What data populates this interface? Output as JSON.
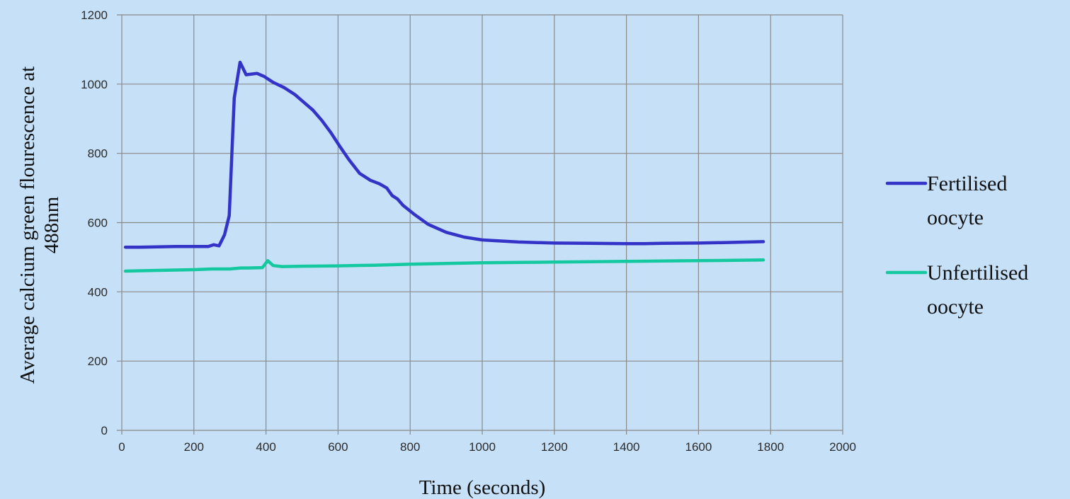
{
  "chart_data": {
    "type": "line",
    "title": "",
    "xlabel": "Time (seconds)",
    "ylabel_line1": "Average calcium green flourescence at",
    "ylabel_line2": "488nm",
    "xlim": [
      0,
      2000
    ],
    "ylim": [
      0,
      1200
    ],
    "xticks": [
      0,
      200,
      400,
      600,
      800,
      1000,
      1200,
      1400,
      1600,
      1800,
      2000
    ],
    "yticks": [
      0,
      200,
      400,
      600,
      800,
      1000,
      1200
    ],
    "grid": true,
    "legend_position": "right",
    "series": [
      {
        "name_line1": "Fertilised",
        "name_line2": "oocyte",
        "color": "#3333c8",
        "points": [
          [
            10,
            529
          ],
          [
            50,
            529
          ],
          [
            100,
            530
          ],
          [
            150,
            531
          ],
          [
            200,
            531
          ],
          [
            240,
            531
          ],
          [
            255,
            536
          ],
          [
            270,
            533
          ],
          [
            285,
            565
          ],
          [
            298,
            620
          ],
          [
            312,
            960
          ],
          [
            328,
            1063
          ],
          [
            345,
            1027
          ],
          [
            375,
            1031
          ],
          [
            395,
            1022
          ],
          [
            420,
            1005
          ],
          [
            450,
            990
          ],
          [
            480,
            970
          ],
          [
            500,
            952
          ],
          [
            530,
            925
          ],
          [
            555,
            895
          ],
          [
            580,
            860
          ],
          [
            605,
            820
          ],
          [
            630,
            782
          ],
          [
            660,
            742
          ],
          [
            690,
            722
          ],
          [
            715,
            712
          ],
          [
            735,
            700
          ],
          [
            750,
            678
          ],
          [
            765,
            668
          ],
          [
            780,
            650
          ],
          [
            810,
            625
          ],
          [
            850,
            595
          ],
          [
            900,
            572
          ],
          [
            950,
            558
          ],
          [
            1000,
            550
          ],
          [
            1100,
            544
          ],
          [
            1200,
            541
          ],
          [
            1300,
            540
          ],
          [
            1400,
            539
          ],
          [
            1450,
            539
          ],
          [
            1500,
            540
          ],
          [
            1600,
            541
          ],
          [
            1700,
            543
          ],
          [
            1780,
            545
          ]
        ]
      },
      {
        "name_line1": "Unfertilised",
        "name_line2": "oocyte",
        "color": "#14c8a0",
        "points": [
          [
            10,
            460
          ],
          [
            100,
            462
          ],
          [
            200,
            464
          ],
          [
            250,
            466
          ],
          [
            300,
            466
          ],
          [
            330,
            469
          ],
          [
            350,
            469
          ],
          [
            390,
            470
          ],
          [
            405,
            490
          ],
          [
            420,
            476
          ],
          [
            445,
            473
          ],
          [
            500,
            474
          ],
          [
            600,
            475
          ],
          [
            700,
            477
          ],
          [
            800,
            480
          ],
          [
            900,
            482
          ],
          [
            1000,
            484
          ],
          [
            1100,
            485
          ],
          [
            1200,
            486
          ],
          [
            1300,
            487
          ],
          [
            1400,
            488
          ],
          [
            1500,
            489
          ],
          [
            1600,
            490
          ],
          [
            1700,
            491
          ],
          [
            1780,
            492
          ]
        ]
      }
    ]
  }
}
